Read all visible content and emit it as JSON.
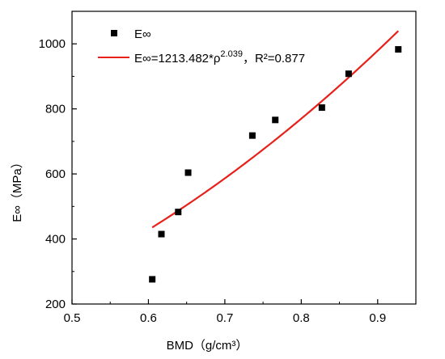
{
  "chart_data": {
    "type": "scatter",
    "xlabel": "BMD（g/cm³）",
    "ylabel": "E∞（MPa）",
    "xlim": [
      0.5,
      0.95
    ],
    "ylim": [
      200,
      1100
    ],
    "x_ticks": [
      0.5,
      0.6,
      0.7,
      0.8,
      0.9
    ],
    "x_tick_labels": [
      "0.5",
      "0.6",
      "0.7",
      "0.8",
      "0.9"
    ],
    "y_ticks": [
      200,
      400,
      600,
      800,
      1000
    ],
    "y_tick_labels": [
      "200",
      "400",
      "600",
      "800",
      "1000"
    ],
    "grid": false,
    "legend_position": "top-left",
    "series": [
      {
        "name": "E∞",
        "kind": "scatter",
        "marker": "square",
        "color": "#000000",
        "x": [
          0.605,
          0.617,
          0.639,
          0.652,
          0.736,
          0.766,
          0.827,
          0.862,
          0.927
        ],
        "y": [
          276,
          415,
          483,
          604,
          718,
          766,
          804,
          908,
          983
        ]
      },
      {
        "name": "E∞=1213.482*ρ2.039，R²=0.877",
        "legend": {
          "prefix": "E∞=1213.482*ρ",
          "exponent": "2.039",
          "suffix": "，R²=0.877"
        },
        "kind": "fit",
        "color": "#e8201a",
        "coefficient": 1213.482,
        "exponent": 2.039,
        "x_range": [
          0.605,
          0.927
        ]
      }
    ]
  }
}
